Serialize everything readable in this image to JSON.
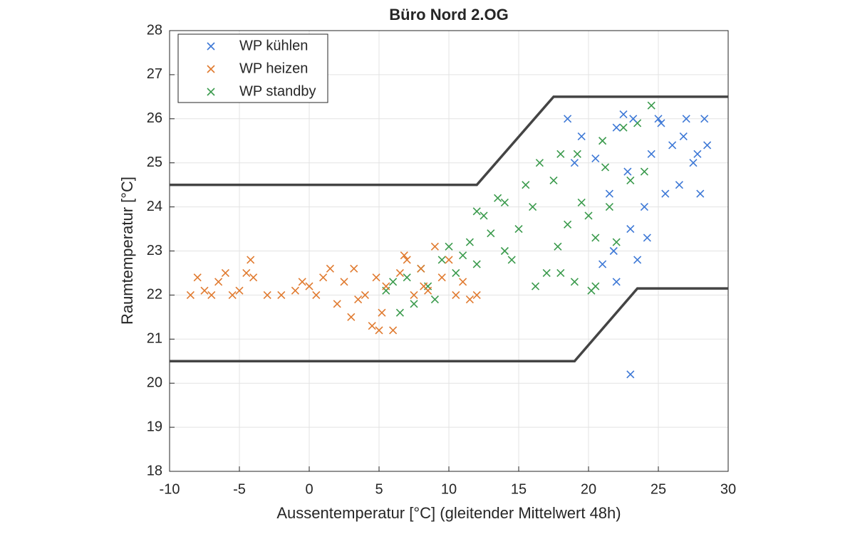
{
  "chart_data": {
    "type": "scatter",
    "title": "Büro Nord 2.OG",
    "x_label": "Aussentemperatur [°C] (gleitender Mittelwert 48h)",
    "y_label": "Raumtemperatur [°C]",
    "xlim": [
      -10,
      30
    ],
    "xticks": [
      -10,
      -5,
      0,
      5,
      10,
      15,
      20,
      25,
      30
    ],
    "ylim": [
      18,
      28
    ],
    "yticks": [
      18,
      19,
      20,
      21,
      22,
      23,
      24,
      25,
      26,
      27,
      28
    ],
    "grid": true,
    "legend": "upper-left",
    "series": [
      {
        "name": "WP kühlen",
        "color": "#3d78d6",
        "x": [
          18.5,
          19,
          19.5,
          20.5,
          21,
          21.5,
          22,
          22.5,
          23,
          23.5,
          24,
          24.5,
          25,
          25.5,
          26,
          26.5,
          27,
          27.5,
          28,
          28.3,
          28.5,
          23,
          22,
          24.2,
          25.2,
          26.8,
          27.8,
          21.8,
          23.2,
          22.8
        ],
        "values": [
          26.0,
          25.0,
          25.6,
          25.1,
          22.7,
          24.3,
          22.3,
          26.1,
          23.5,
          22.8,
          24.0,
          25.2,
          26.0,
          24.3,
          25.4,
          24.5,
          26.0,
          25.0,
          24.3,
          26.0,
          25.4,
          20.2,
          25.8,
          23.3,
          25.9,
          25.6,
          25.2,
          23.0,
          26.0,
          24.8
        ]
      },
      {
        "name": "WP heizen",
        "color": "#e07a2f",
        "x": [
          -8.5,
          -8,
          -7.5,
          -7,
          -6.5,
          -6,
          -5.5,
          -5,
          -4.5,
          -4.2,
          -4,
          -3,
          -2,
          -1,
          -0.5,
          0,
          0.5,
          1,
          1.5,
          2,
          2.5,
          3,
          3.5,
          4,
          4.5,
          5,
          5.5,
          6,
          6.5,
          7,
          7.5,
          8,
          8.5,
          9,
          9.5,
          10,
          10.5,
          11,
          11.5,
          12,
          3.2,
          4.8,
          5.2,
          6.8,
          8.2
        ],
        "values": [
          22.0,
          22.4,
          22.1,
          22.0,
          22.3,
          22.5,
          22.0,
          22.1,
          22.5,
          22.8,
          22.4,
          22.0,
          22.0,
          22.1,
          22.3,
          22.2,
          22.0,
          22.4,
          22.6,
          21.8,
          22.3,
          21.5,
          21.9,
          22.0,
          21.3,
          21.2,
          22.2,
          21.2,
          22.5,
          22.8,
          22.0,
          22.6,
          22.1,
          23.1,
          22.4,
          22.8,
          22.0,
          22.3,
          21.9,
          22.0,
          22.6,
          22.4,
          21.6,
          22.9,
          22.2
        ]
      },
      {
        "name": "WP standby",
        "color": "#3a9a4c",
        "x": [
          5.5,
          6,
          6.5,
          7,
          7.5,
          8,
          8.5,
          9,
          9.5,
          10,
          10.5,
          11,
          11.5,
          12,
          12.5,
          13,
          13.5,
          14,
          14.5,
          15,
          15.5,
          16,
          16.5,
          17,
          17.5,
          18,
          18.5,
          19,
          19.5,
          20,
          20.5,
          21,
          21.5,
          22,
          22.5,
          23,
          23.5,
          24,
          24.5,
          16.2,
          17.8,
          19.2,
          20.2,
          21.2,
          18,
          14,
          12,
          20.5
        ],
        "values": [
          22.1,
          22.3,
          21.6,
          22.4,
          21.8,
          22.6,
          22.2,
          21.9,
          22.8,
          23.1,
          22.5,
          22.9,
          23.2,
          22.7,
          23.8,
          23.4,
          24.2,
          23.0,
          22.8,
          23.5,
          24.5,
          24.0,
          25.0,
          22.5,
          24.6,
          25.2,
          23.6,
          22.3,
          24.1,
          23.8,
          22.2,
          25.5,
          24.0,
          23.2,
          25.8,
          24.6,
          25.9,
          24.8,
          26.3,
          22.2,
          23.1,
          25.2,
          22.1,
          24.9,
          22.5,
          24.1,
          23.9,
          23.3
        ]
      }
    ],
    "reference_lines": [
      {
        "x": [
          -10,
          12,
          17.5,
          30
        ],
        "values": [
          24.5,
          24.5,
          26.5,
          26.5
        ],
        "color": "#444444"
      },
      {
        "x": [
          -10,
          19,
          23.5,
          30
        ],
        "values": [
          20.5,
          20.5,
          22.15,
          22.15
        ],
        "color": "#444444"
      }
    ]
  }
}
